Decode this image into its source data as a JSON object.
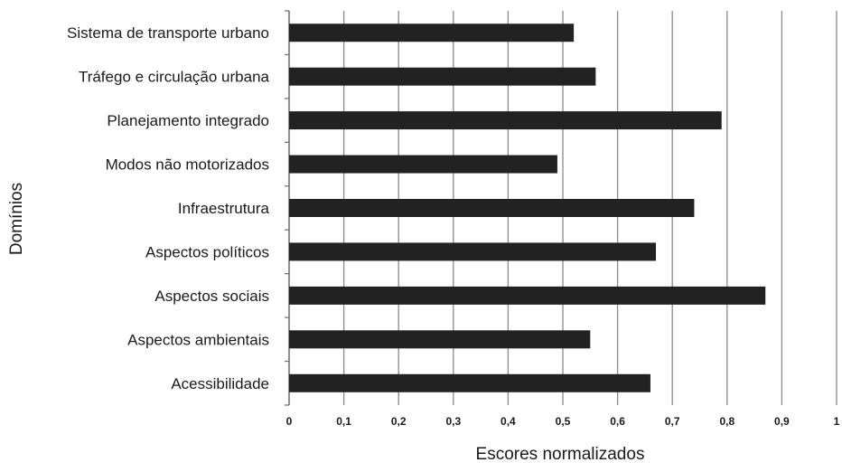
{
  "chart_data": {
    "type": "bar",
    "orientation": "horizontal",
    "categories": [
      "Sistema de transporte urbano",
      "Tráfego e circulação urbana",
      "Planejamento integrado",
      "Modos não motorizados",
      "Infraestrutura",
      "Aspectos políticos",
      "Aspectos sociais",
      "Aspectos ambientais",
      "Acessibilidade"
    ],
    "values": [
      0.52,
      0.56,
      0.79,
      0.49,
      0.74,
      0.67,
      0.87,
      0.55,
      0.66
    ],
    "xlabel": "Escores normalizados",
    "ylabel": "Domínios",
    "xlim": [
      0,
      1
    ],
    "xticks": [
      "0",
      "0,1",
      "0,2",
      "0,3",
      "0,4",
      "0,5",
      "0,6",
      "0,7",
      "0,8",
      "0,9",
      "1"
    ],
    "grid": "vertical",
    "bar_color": "#222222",
    "grid_color": "#8a8a8a"
  }
}
